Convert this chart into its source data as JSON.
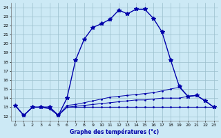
{
  "title": "Graphe des températures (°c)",
  "bg_color": "#cce9f5",
  "plot_bg_color": "#cce9f5",
  "grid_color": "#9bbfcc",
  "line_color": "#0000aa",
  "ylim": [
    11.5,
    24.5
  ],
  "xlim": [
    -0.5,
    23.5
  ],
  "ytick_labels": [
    "12",
    "13",
    "14",
    "15",
    "16",
    "17",
    "18",
    "19",
    "20",
    "21",
    "22",
    "23",
    "24"
  ],
  "ytick_vals": [
    12,
    13,
    14,
    15,
    16,
    17,
    18,
    19,
    20,
    21,
    22,
    23,
    24
  ],
  "xtick_labels": [
    "0",
    "1",
    "2",
    "3",
    "4",
    "5",
    "6",
    "7",
    "8",
    "9",
    "10",
    "11",
    "12",
    "13",
    "14",
    "15",
    "16",
    "17",
    "18",
    "19",
    "20",
    "21",
    "22",
    "23"
  ],
  "xtick_vals": [
    0,
    1,
    2,
    3,
    4,
    5,
    6,
    7,
    8,
    9,
    10,
    11,
    12,
    13,
    14,
    15,
    16,
    17,
    18,
    19,
    20,
    21,
    22,
    23
  ],
  "series": [
    {
      "x": [
        0,
        1,
        2,
        3,
        4,
        5,
        6,
        7,
        8,
        9,
        10,
        11,
        12,
        13,
        14,
        15,
        16,
        17,
        18,
        19,
        20,
        21,
        22,
        23
      ],
      "y": [
        13.2,
        12.1,
        13.0,
        13.0,
        13.0,
        12.1,
        14.0,
        18.2,
        20.5,
        21.8,
        22.2,
        22.7,
        23.7,
        23.3,
        23.8,
        23.8,
        22.8,
        21.3,
        18.2,
        15.3,
        14.2,
        14.3,
        13.7,
        13.0
      ],
      "marker": "*",
      "markersize": 4,
      "linewidth": 1.0
    },
    {
      "x": [
        0,
        1,
        2,
        3,
        4,
        5,
        6,
        7,
        8,
        9,
        10,
        11,
        12,
        13,
        14,
        15,
        16,
        17,
        18,
        19,
        20,
        21,
        22,
        23
      ],
      "y": [
        13.2,
        12.1,
        13.0,
        13.0,
        12.8,
        12.1,
        13.0,
        13.0,
        13.0,
        13.0,
        13.0,
        13.0,
        13.0,
        13.0,
        13.0,
        13.0,
        13.0,
        13.0,
        13.0,
        13.0,
        13.0,
        13.0,
        13.0,
        13.0
      ],
      "marker": ".",
      "markersize": 2,
      "linewidth": 0.7
    },
    {
      "x": [
        0,
        1,
        2,
        3,
        4,
        5,
        6,
        7,
        8,
        9,
        10,
        11,
        12,
        13,
        14,
        15,
        16,
        17,
        18,
        19,
        20,
        21,
        22,
        23
      ],
      "y": [
        13.2,
        12.1,
        13.0,
        13.0,
        13.0,
        12.1,
        13.2,
        13.3,
        13.5,
        13.7,
        13.9,
        14.1,
        14.2,
        14.3,
        14.4,
        14.5,
        14.6,
        14.8,
        15.0,
        15.2,
        14.2,
        14.3,
        13.7,
        13.0
      ],
      "marker": ".",
      "markersize": 2,
      "linewidth": 0.7
    },
    {
      "x": [
        0,
        1,
        2,
        3,
        4,
        5,
        6,
        7,
        8,
        9,
        10,
        11,
        12,
        13,
        14,
        15,
        16,
        17,
        18,
        19,
        20,
        21,
        22,
        23
      ],
      "y": [
        13.2,
        12.1,
        13.0,
        13.0,
        13.0,
        12.1,
        13.0,
        13.1,
        13.2,
        13.3,
        13.4,
        13.5,
        13.6,
        13.7,
        13.8,
        13.8,
        13.9,
        14.0,
        14.0,
        14.0,
        14.2,
        14.3,
        13.7,
        13.0
      ],
      "marker": ".",
      "markersize": 2,
      "linewidth": 0.7
    }
  ]
}
